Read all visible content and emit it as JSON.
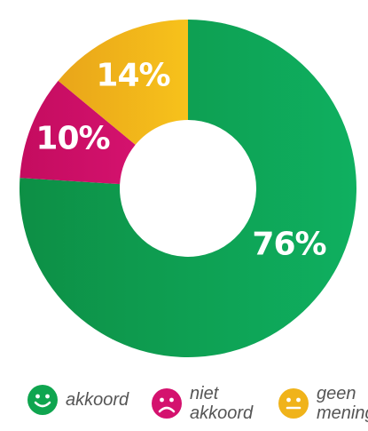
{
  "chart_data": {
    "type": "pie",
    "style": "donut",
    "start_angle": "top",
    "direction": "clockwise",
    "slices": [
      {
        "label": "akkoord",
        "value": 76,
        "display": "76%",
        "color": "#0b9a4a",
        "mood": "happy"
      },
      {
        "label": "niet akkoord",
        "value": 10,
        "display": "10%",
        "color": "#cc0f67",
        "mood": "sad"
      },
      {
        "label": "geen mening",
        "value": 14,
        "display": "14%",
        "color": "#f0b31a",
        "mood": "neutral"
      }
    ]
  },
  "legend": {
    "items": [
      {
        "line1": "akkoord",
        "line2": ""
      },
      {
        "line1": "niet",
        "line2": "akkoord"
      },
      {
        "line1": "geen",
        "line2": "mening"
      }
    ]
  }
}
